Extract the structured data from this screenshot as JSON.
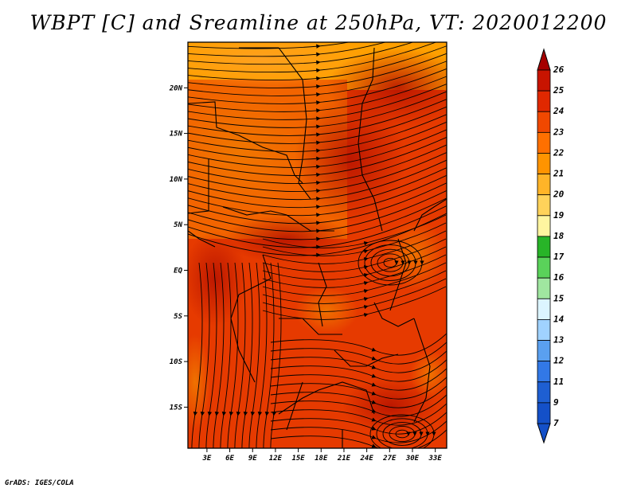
{
  "title": "WBPT [C] and Sreamline at 250hPa, VT: 2020012200",
  "credit": "GrADS: IGES/COLA",
  "map": {
    "lat_ticks": [
      "20N",
      "15N",
      "10N",
      "5N",
      "EQ",
      "5S",
      "10S",
      "15S"
    ],
    "lat_values": [
      20,
      15,
      10,
      5,
      0,
      -5,
      -10,
      -15
    ],
    "lon_ticks": [
      "3E",
      "6E",
      "9E",
      "12E",
      "15E",
      "18E",
      "21E",
      "24E",
      "27E",
      "30E",
      "33E"
    ],
    "lon_values": [
      3,
      6,
      9,
      12,
      15,
      18,
      21,
      24,
      27,
      30,
      33
    ],
    "lon_range": [
      0.5,
      34.5
    ],
    "lat_range": [
      -19.5,
      25
    ]
  },
  "colorbar": {
    "labels": [
      "26",
      "25",
      "24",
      "23",
      "22",
      "21",
      "20",
      "19",
      "18",
      "17",
      "16",
      "15",
      "14",
      "13",
      "12",
      "11",
      "9",
      "7"
    ],
    "colors": [
      "#a50000",
      "#c81400",
      "#e02800",
      "#f04800",
      "#ff7000",
      "#ff9400",
      "#ffb428",
      "#ffd25a",
      "#fff5a0",
      "#28b428",
      "#5ad25a",
      "#a0e6a0",
      "#dcf5ff",
      "#a0d2ff",
      "#5aa0f0",
      "#3278e6",
      "#1e5fd2",
      "#1450c8"
    ]
  }
}
